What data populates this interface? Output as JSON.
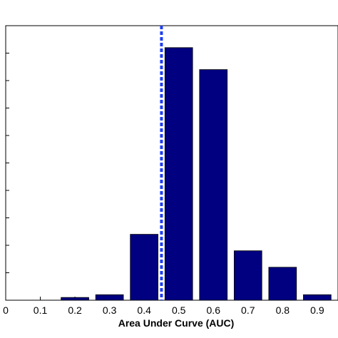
{
  "chart_data": {
    "type": "bar",
    "xlabel": "Area Under Curve (AUC)",
    "ylabel": "",
    "title": "",
    "x_ticks": [
      "0",
      "0.1",
      "0.2",
      "0.3",
      "0.4",
      "0.5",
      "0.6",
      "0.7",
      "0.8",
      "0.9"
    ],
    "xlim": [
      0,
      0.96
    ],
    "ylim": [
      0,
      10
    ],
    "bar_width": 0.08,
    "bars": [
      {
        "x": 0.2,
        "value": 0.1
      },
      {
        "x": 0.3,
        "value": 0.2
      },
      {
        "x": 0.4,
        "value": 2.4
      },
      {
        "x": 0.5,
        "value": 9.2
      },
      {
        "x": 0.6,
        "value": 8.4
      },
      {
        "x": 0.7,
        "value": 1.8
      },
      {
        "x": 0.8,
        "value": 1.2
      },
      {
        "x": 0.9,
        "value": 0.2
      }
    ],
    "reference_line": {
      "x": 0.45,
      "style": "dashed",
      "color": "#1f3ff0"
    },
    "bar_color": "#000080",
    "grid": false,
    "legend": "none"
  }
}
